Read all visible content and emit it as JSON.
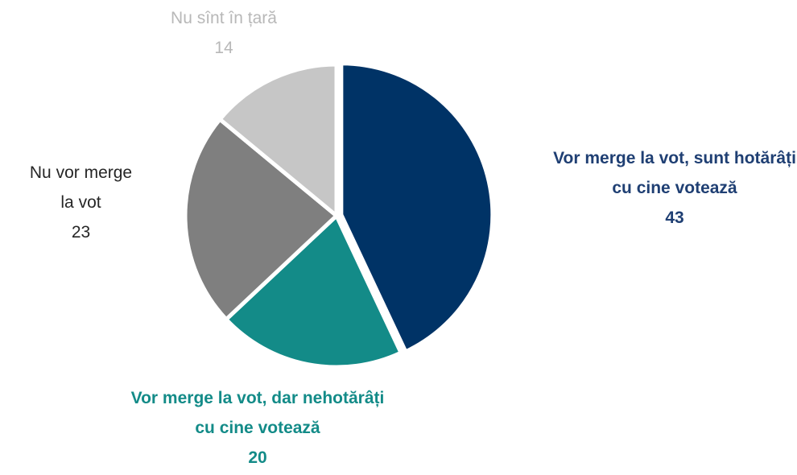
{
  "chart_data": {
    "type": "pie",
    "categories": [
      "Vor merge la vot, sunt hotărâți cu cine votează",
      "Vor merge la vot, dar nehotărâți cu cine votează",
      "Nu vor merge la vot",
      "Nu sînt în țară"
    ],
    "values": [
      43,
      20,
      23,
      14
    ],
    "colors": [
      "#003366",
      "#138b88",
      "#7f7f7f",
      "#c6c6c6"
    ],
    "label_colors": [
      "#1f3f73",
      "#138b88",
      "#262626",
      "#b8b8b8"
    ]
  }
}
